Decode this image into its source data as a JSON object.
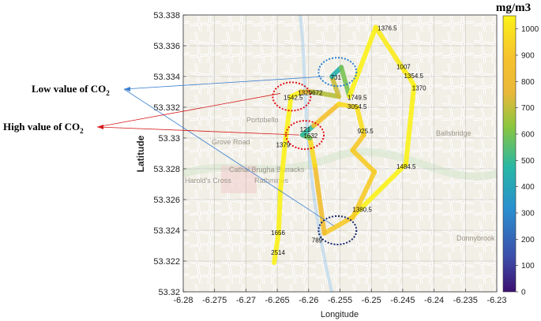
{
  "chart_data": {
    "type": "line",
    "xlabel": "Longitude",
    "ylabel": "Latitude",
    "xlim": [
      -6.28,
      -6.23
    ],
    "ylim": [
      53.32,
      53.338
    ],
    "xticks": [
      "-6.28",
      "-6.275",
      "-6.27",
      "-6.265",
      "-6.26",
      "-6.255",
      "-6.25",
      "-6.245",
      "-6.24",
      "-6.235",
      "-6.23"
    ],
    "yticks": [
      "53.32",
      "53.322",
      "53.324",
      "53.326",
      "53.328",
      "53.33",
      "53.332",
      "53.334",
      "53.336",
      "53.338"
    ],
    "grid": true,
    "colorbar": {
      "unit": "mg/m3",
      "range": [
        0,
        1050
      ],
      "ticks": [
        "0",
        "100",
        "200",
        "300",
        "400",
        "500",
        "600",
        "700",
        "800",
        "900",
        "1000"
      ],
      "colormap": [
        "#440154",
        "#3b528b",
        "#21908d",
        "#5dc963",
        "#d9d326",
        "#f0c020",
        "#fde725"
      ]
    },
    "route": [
      {
        "x": -6.2655,
        "y": 53.3219,
        "v": 2514
      },
      {
        "x": -6.2648,
        "y": 53.3238,
        "v": 1656
      },
      {
        "x": -6.2645,
        "y": 53.3266,
        "v": 1500
      },
      {
        "x": -6.2638,
        "y": 53.3295,
        "v": 1379
      },
      {
        "x": -6.2628,
        "y": 53.3327,
        "v": 1542.5
      },
      {
        "x": -6.2612,
        "y": 53.333,
        "v": 1329
      },
      {
        "x": -6.2594,
        "y": 53.333,
        "v": 672
      },
      {
        "x": -6.2552,
        "y": 53.3327,
        "v": 700
      },
      {
        "x": -6.2563,
        "y": 53.334,
        "v": 731
      },
      {
        "x": -6.2548,
        "y": 53.3346,
        "v": 150
      },
      {
        "x": -6.2535,
        "y": 53.3327,
        "v": 1749.5
      },
      {
        "x": -6.2493,
        "y": 53.3372,
        "v": 1376.5
      },
      {
        "x": -6.2448,
        "y": 53.3344,
        "v": 1007
      },
      {
        "x": -6.244,
        "y": 53.334,
        "v": 1354.5
      },
      {
        "x": -6.2432,
        "y": 53.3334,
        "v": 1370
      },
      {
        "x": -6.2445,
        "y": 53.3283,
        "v": 1484.5
      },
      {
        "x": -6.2532,
        "y": 53.3248,
        "v": 1380.5
      },
      {
        "x": -6.2575,
        "y": 53.3238,
        "v": 789
      },
      {
        "x": -6.259,
        "y": 53.3282,
        "v": 900
      },
      {
        "x": -6.2598,
        "y": 53.33,
        "v": 1632
      },
      {
        "x": -6.261,
        "y": 53.3302,
        "v": 121
      },
      {
        "x": -6.2592,
        "y": 53.3308,
        "v": 850
      },
      {
        "x": -6.2552,
        "y": 53.3322,
        "v": 900
      },
      {
        "x": -6.2523,
        "y": 53.332,
        "v": 3054.5
      },
      {
        "x": -6.2512,
        "y": 53.3302,
        "v": 925.5
      },
      {
        "x": -6.253,
        "y": 53.3292,
        "v": 900
      },
      {
        "x": -6.2495,
        "y": 53.3278,
        "v": 950
      },
      {
        "x": -6.253,
        "y": 53.3248,
        "v": 900
      }
    ],
    "data_labels": [
      {
        "text": "1376.5",
        "x": -6.249,
        "y": 53.337
      },
      {
        "text": "1007",
        "x": -6.246,
        "y": 53.3345
      },
      {
        "text": "1354.5",
        "x": -6.2448,
        "y": 53.3339
      },
      {
        "text": "1370",
        "x": -6.2435,
        "y": 53.3331
      },
      {
        "text": "731",
        "x": -6.2565,
        "y": 53.3338
      },
      {
        "text": "1542.5",
        "x": -6.264,
        "y": 53.3325
      },
      {
        "text": "1329672",
        "x": -6.2617,
        "y": 53.3328
      },
      {
        "text": "1749.5",
        "x": -6.2538,
        "y": 53.3325
      },
      {
        "text": "3054.5",
        "x": -6.2538,
        "y": 53.3319
      },
      {
        "text": "121",
        "x": -6.2614,
        "y": 53.3304
      },
      {
        "text": "1632",
        "x": -6.2608,
        "y": 53.33
      },
      {
        "text": "925.5",
        "x": -6.2522,
        "y": 53.3303
      },
      {
        "text": "1379",
        "x": -6.2652,
        "y": 53.3294
      },
      {
        "text": "1484.5",
        "x": -6.246,
        "y": 53.328
      },
      {
        "text": "1380.5",
        "x": -6.253,
        "y": 53.3252
      },
      {
        "text": "1656",
        "x": -6.266,
        "y": 53.3237
      },
      {
        "text": "789",
        "x": -6.2595,
        "y": 53.3232
      },
      {
        "text": "2514",
        "x": -6.266,
        "y": 53.3224
      }
    ],
    "circles": [
      {
        "kind": "low",
        "x": -6.2554,
        "y": 53.3343
      },
      {
        "kind": "high",
        "x": -6.2627,
        "y": 53.3327
      },
      {
        "kind": "high",
        "x": -6.2606,
        "y": 53.3302
      },
      {
        "kind": "low",
        "x": -6.2554,
        "y": 53.324
      }
    ],
    "annotations": [
      {
        "kind": "low",
        "text": "Low value of CO",
        "sub": "2"
      },
      {
        "kind": "high",
        "text": "High value of CO",
        "sub": "2"
      }
    ],
    "map_labels": [
      "Portobello",
      "Grove Road",
      "Cathal Brugha Barracks",
      "Rathmines",
      "Ballsbridge",
      "Donnybrook",
      "Harold's Cross"
    ]
  }
}
